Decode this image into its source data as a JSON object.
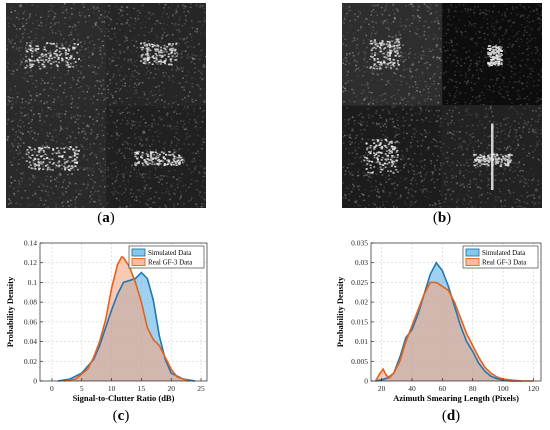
{
  "figure": {
    "labels": {
      "a": "a",
      "b": "b",
      "c": "c",
      "d": "d"
    }
  },
  "chart_data": [
    {
      "type": "area",
      "id": "c",
      "title": "",
      "xlabel": "Signal-to-Clutter Ratio (dB)",
      "ylabel": "Probability Density",
      "xlim": [
        -2,
        26
      ],
      "ylim": [
        0,
        0.14
      ],
      "xticks": [
        0,
        5,
        10,
        15,
        20,
        25
      ],
      "yticks": [
        0,
        0.02,
        0.04,
        0.06,
        0.08,
        0.1,
        0.12,
        0.14
      ],
      "xtick_labels": [
        "0",
        "5",
        "10",
        "15",
        "20",
        "25"
      ],
      "ytick_labels": [
        "0",
        "0.02",
        "0.04",
        "0.06",
        "0.08",
        "0.1",
        "0.12",
        "0.14"
      ],
      "grid": true,
      "legend": "top-right",
      "series": [
        {
          "name": "Simulated Data",
          "color": "#1f77b4",
          "fill": "#5fb4e6",
          "x": [
            1,
            3,
            5,
            7,
            8,
            9,
            10,
            11,
            12,
            13,
            14,
            15,
            16,
            17,
            18,
            19,
            20,
            22,
            24
          ],
          "y": [
            0.0,
            0.002,
            0.008,
            0.022,
            0.036,
            0.054,
            0.072,
            0.088,
            0.1,
            0.102,
            0.104,
            0.11,
            0.104,
            0.082,
            0.046,
            0.022,
            0.008,
            0.002,
            0.0
          ]
        },
        {
          "name": "Real GF-3 Data",
          "color": "#e8601c",
          "fill": "#f4a582",
          "x": [
            2,
            4,
            6,
            7,
            8,
            9,
            10,
            11,
            11.7,
            12,
            13,
            14,
            15,
            16,
            17,
            18,
            19,
            20,
            21,
            23
          ],
          "y": [
            0.0,
            0.002,
            0.012,
            0.024,
            0.04,
            0.062,
            0.094,
            0.118,
            0.126,
            0.125,
            0.116,
            0.1,
            0.08,
            0.054,
            0.042,
            0.036,
            0.024,
            0.012,
            0.004,
            0.0
          ]
        }
      ]
    },
    {
      "type": "area",
      "id": "d",
      "title": "",
      "xlabel": "Azimuth Smearing Length (Pixels)",
      "ylabel": "Probability Density",
      "xlim": [
        13,
        125
      ],
      "ylim": [
        0,
        0.035
      ],
      "xticks": [
        20,
        40,
        60,
        80,
        100,
        120
      ],
      "yticks": [
        0,
        0.005,
        0.01,
        0.015,
        0.02,
        0.025,
        0.03,
        0.035
      ],
      "xtick_labels": [
        "20",
        "40",
        "60",
        "80",
        "100",
        "120"
      ],
      "ytick_labels": [
        "0",
        "0.005",
        "0.01",
        "0.015",
        "0.02",
        "0.025",
        "0.03",
        "0.035"
      ],
      "grid": true,
      "legend": "top-right",
      "series": [
        {
          "name": "Simulated Data",
          "color": "#1f77b4",
          "fill": "#5fb4e6",
          "x": [
            16,
            20,
            24,
            28,
            32,
            36,
            40,
            44,
            48,
            52,
            56,
            60,
            64,
            68,
            72,
            76,
            80,
            84,
            88,
            92,
            96,
            100,
            106,
            112
          ],
          "y": [
            0.0,
            0.0003,
            0.0008,
            0.002,
            0.006,
            0.011,
            0.013,
            0.017,
            0.022,
            0.027,
            0.03,
            0.028,
            0.024,
            0.019,
            0.014,
            0.01,
            0.0075,
            0.0045,
            0.0025,
            0.0012,
            0.0006,
            0.0002,
            0.0,
            0.0
          ]
        },
        {
          "name": "Real GF-3 Data",
          "color": "#e8601c",
          "fill": "#f4a582",
          "x": [
            16,
            19,
            21,
            23,
            25,
            28,
            32,
            36,
            40,
            44,
            48,
            52,
            56,
            60,
            64,
            68,
            72,
            76,
            80,
            84,
            88,
            92,
            96,
            100,
            106,
            112,
            120
          ],
          "y": [
            0.0,
            0.002,
            0.003,
            0.0015,
            0.0008,
            0.002,
            0.005,
            0.01,
            0.014,
            0.018,
            0.022,
            0.025,
            0.025,
            0.024,
            0.023,
            0.02,
            0.016,
            0.012,
            0.009,
            0.006,
            0.0035,
            0.002,
            0.001,
            0.0005,
            0.0002,
            0.0,
            0.0
          ]
        }
      ]
    }
  ]
}
